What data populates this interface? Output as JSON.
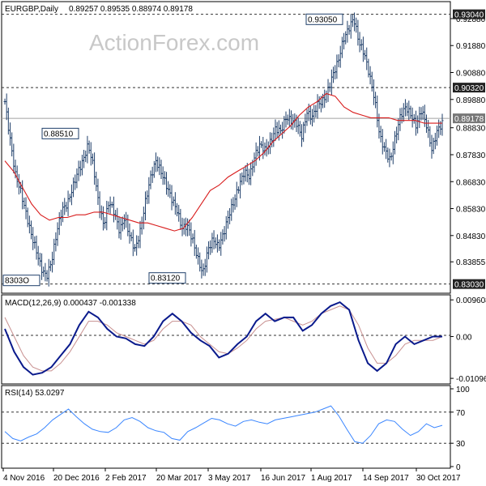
{
  "header": {
    "symbol_label": "EURGBP,Daily",
    "ohlc_label": "0.89257 0.89535 0.88974 0.89178"
  },
  "watermark": "ActionForex.com",
  "colors": {
    "price_bars": "#1f3f6a",
    "moving_average": "#d81b1b",
    "macd_line": "#0a1a8c",
    "signal_line": "#c89090",
    "rsi_line": "#3a86ff",
    "dashed_levels": "#333333",
    "current_price_line": "#a0a0a0"
  },
  "chart_data": [
    {
      "type": "ohlc",
      "panel": "price",
      "title": "EURGBP,Daily",
      "x_ticks": [
        "4 Nov 2016",
        "20 Dec 2016",
        "2 Feb 2017",
        "20 Mar 2017",
        "3 May 2017",
        "16 Jun 2017",
        "1 Aug 2017",
        "14 Sep 2017",
        "30 Oct 2017"
      ],
      "y_ticks": [
        "0.92880",
        "0.91880",
        "0.90880",
        "0.89880",
        "0.88830",
        "0.87830",
        "0.86830",
        "0.85830",
        "0.84830",
        "0.83855"
      ],
      "ylim": [
        0.8275,
        0.9345
      ],
      "levels": [
        {
          "label": "0.93040",
          "value": 0.9304
        },
        {
          "label": "0.90320",
          "value": 0.9032
        },
        {
          "label": "0.83030",
          "value": 0.8303
        }
      ],
      "current_price": {
        "label": "0.89178",
        "value": 0.89178
      },
      "annotations": [
        {
          "label": "0.93050",
          "value": 0.9305
        },
        {
          "label": "0.88510",
          "value": 0.8851
        },
        {
          "label": "0.83120",
          "value": 0.8312
        },
        {
          "label": "8303O",
          "value": 0.8303
        }
      ],
      "close_path": [
        0.898,
        0.884,
        0.871,
        0.865,
        0.857,
        0.849,
        0.843,
        0.836,
        0.833,
        0.839,
        0.85,
        0.858,
        0.86,
        0.866,
        0.872,
        0.876,
        0.882,
        0.874,
        0.86,
        0.852,
        0.861,
        0.857,
        0.85,
        0.855,
        0.848,
        0.843,
        0.85,
        0.861,
        0.87,
        0.876,
        0.872,
        0.867,
        0.862,
        0.858,
        0.851,
        0.852,
        0.847,
        0.84,
        0.834,
        0.843,
        0.847,
        0.844,
        0.849,
        0.856,
        0.861,
        0.867,
        0.872,
        0.87,
        0.878,
        0.882,
        0.88,
        0.883,
        0.888,
        0.887,
        0.892,
        0.891,
        0.89,
        0.885,
        0.894,
        0.892,
        0.897,
        0.898,
        0.902,
        0.908,
        0.913,
        0.921,
        0.925,
        0.929,
        0.92,
        0.916,
        0.908,
        0.899,
        0.885,
        0.88,
        0.876,
        0.885,
        0.893,
        0.896,
        0.893,
        0.889,
        0.895,
        0.889,
        0.88,
        0.887,
        0.89
      ],
      "ma_path": [
        0.876,
        0.872,
        0.866,
        0.86,
        0.856,
        0.854,
        0.855,
        0.855,
        0.856,
        0.856,
        0.857,
        0.857,
        0.856,
        0.855,
        0.854,
        0.853,
        0.853,
        0.852,
        0.851,
        0.85,
        0.851,
        0.855,
        0.86,
        0.865,
        0.867,
        0.87,
        0.872,
        0.874,
        0.876,
        0.879,
        0.883,
        0.886,
        0.889,
        0.893,
        0.896,
        0.898,
        0.901,
        0.9,
        0.896,
        0.894,
        0.893,
        0.892,
        0.892,
        0.892,
        0.891,
        0.891,
        0.891,
        0.89,
        0.89,
        0.89
      ]
    },
    {
      "type": "line",
      "panel": "macd",
      "title": "MACD(12,26,9) 0.000437 -0.001338",
      "y_ticks": [
        "0.009608",
        "0.00",
        "-0.010961"
      ],
      "ylim": [
        -0.012,
        0.0105
      ],
      "series": [
        {
          "name": "MACD",
          "values": [
            0.002,
            -0.004,
            -0.008,
            -0.01,
            -0.0095,
            -0.008,
            -0.005,
            -0.002,
            0.003,
            0.0065,
            0.005,
            0.002,
            0.0,
            -0.0005,
            -0.002,
            -0.0025,
            0.0,
            0.004,
            0.006,
            0.004,
            0.001,
            -0.001,
            -0.0025,
            -0.0055,
            -0.0045,
            -0.002,
            0.0,
            0.004,
            0.006,
            0.004,
            0.005,
            0.005,
            0.0015,
            0.003,
            0.006,
            0.008,
            0.009,
            0.007,
            -0.001,
            -0.007,
            -0.009,
            -0.007,
            -0.002,
            0.0,
            -0.002,
            -0.001,
            0.0,
            0.0
          ]
        },
        {
          "values": [
            0.005,
            0.0,
            -0.005,
            -0.008,
            -0.009,
            -0.009,
            -0.007,
            -0.004,
            0.0,
            0.004,
            0.004,
            0.003,
            0.001,
            0.0,
            -0.001,
            -0.002,
            -0.001,
            0.002,
            0.004,
            0.004,
            0.003,
            0.0,
            -0.002,
            -0.004,
            -0.0045,
            -0.003,
            -0.001,
            0.002,
            0.004,
            0.0045,
            0.005,
            0.004,
            0.003,
            0.004,
            0.006,
            0.007,
            0.008,
            0.007,
            0.003,
            -0.003,
            -0.007,
            -0.007,
            -0.005,
            -0.002,
            -0.001,
            -0.001,
            -0.001,
            0.0
          ]
        }
      ]
    },
    {
      "type": "line",
      "panel": "rsi",
      "title": "RSI(14) 53.0297",
      "y_ticks": [
        "100",
        "70",
        "30",
        "0"
      ],
      "ylim": [
        0,
        100
      ],
      "levels": [
        70,
        30
      ],
      "series": [
        {
          "values": [
            45,
            36,
            33,
            38,
            42,
            50,
            60,
            67,
            74,
            64,
            55,
            48,
            45,
            44,
            50,
            60,
            63,
            58,
            50,
            46,
            44,
            36,
            34,
            45,
            50,
            56,
            62,
            60,
            55,
            52,
            58,
            60,
            57,
            55,
            60,
            62,
            64,
            66,
            68,
            70,
            74,
            78,
            65,
            48,
            32,
            30,
            40,
            55,
            60,
            58,
            48,
            40,
            45,
            55,
            50,
            53
          ]
        }
      ]
    }
  ]
}
